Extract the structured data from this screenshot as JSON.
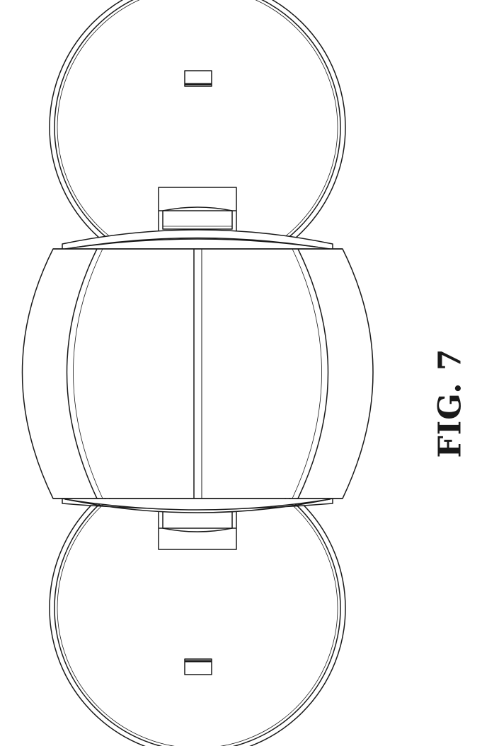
{
  "figure": {
    "label": "FIG. 7"
  },
  "colors": {
    "line": "#1a1a1a",
    "background": "#ffffff"
  }
}
